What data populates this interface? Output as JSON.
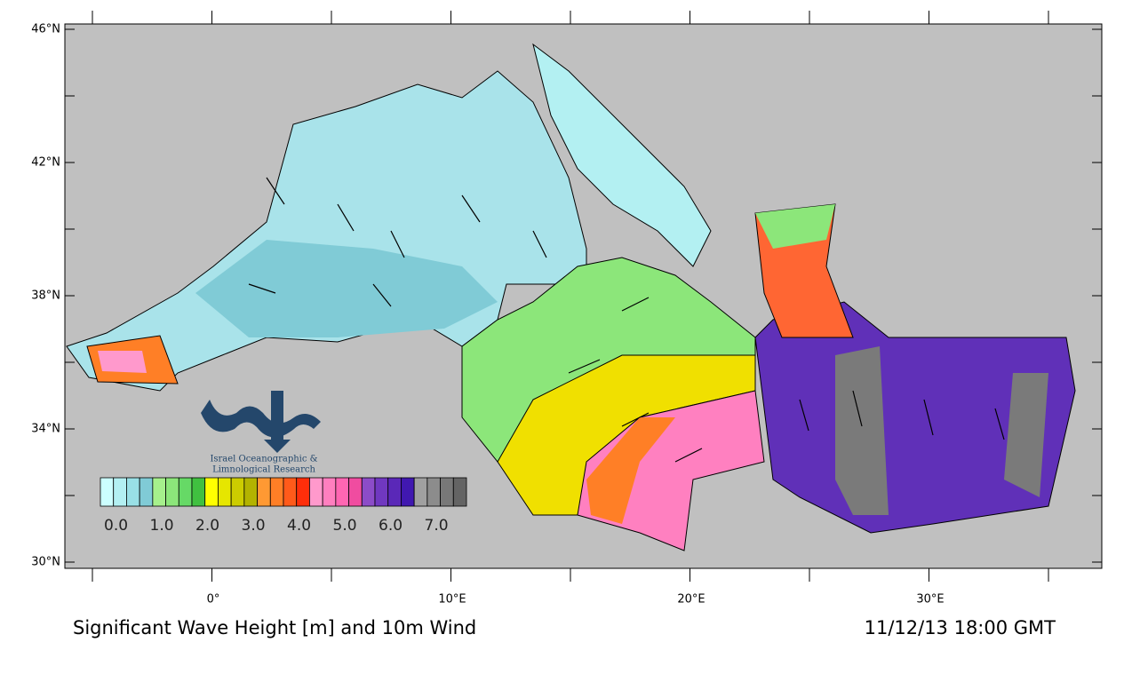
{
  "map": {
    "title": "Significant Wave Height [m] and 10m Wind",
    "timestamp": "11/12/13 18:00 GMT",
    "lat_labels": [
      "46°N",
      "42°N",
      "38°N",
      "34°N",
      "30°N"
    ],
    "lon_labels": [
      "0°",
      "10°E",
      "20°E",
      "30°E"
    ],
    "logo_text": [
      "Israel Oceanographic &",
      "Limnological Research"
    ],
    "colorbar": {
      "colors": [
        "#ccffff",
        "#b3f0f2",
        "#99e0e6",
        "#80cbd6",
        "#a6f08c",
        "#8ce67a",
        "#66d966",
        "#40c040",
        "#ffff00",
        "#e6e600",
        "#cccc00",
        "#b3b300",
        "#ff9933",
        "#ff7f26",
        "#ff5a1a",
        "#ff2e0a",
        "#ff99cc",
        "#ff7fbf",
        "#ff66b2",
        "#f04ca0",
        "#8c4cc8",
        "#7038c0",
        "#5a28b8",
        "#4018b0",
        "#a0a0a0",
        "#8c8c8c",
        "#787878",
        "#646464"
      ],
      "labels": [
        "0.0",
        "1.0",
        "2.0",
        "3.0",
        "4.0",
        "5.0",
        "6.0",
        "7.0"
      ]
    }
  }
}
